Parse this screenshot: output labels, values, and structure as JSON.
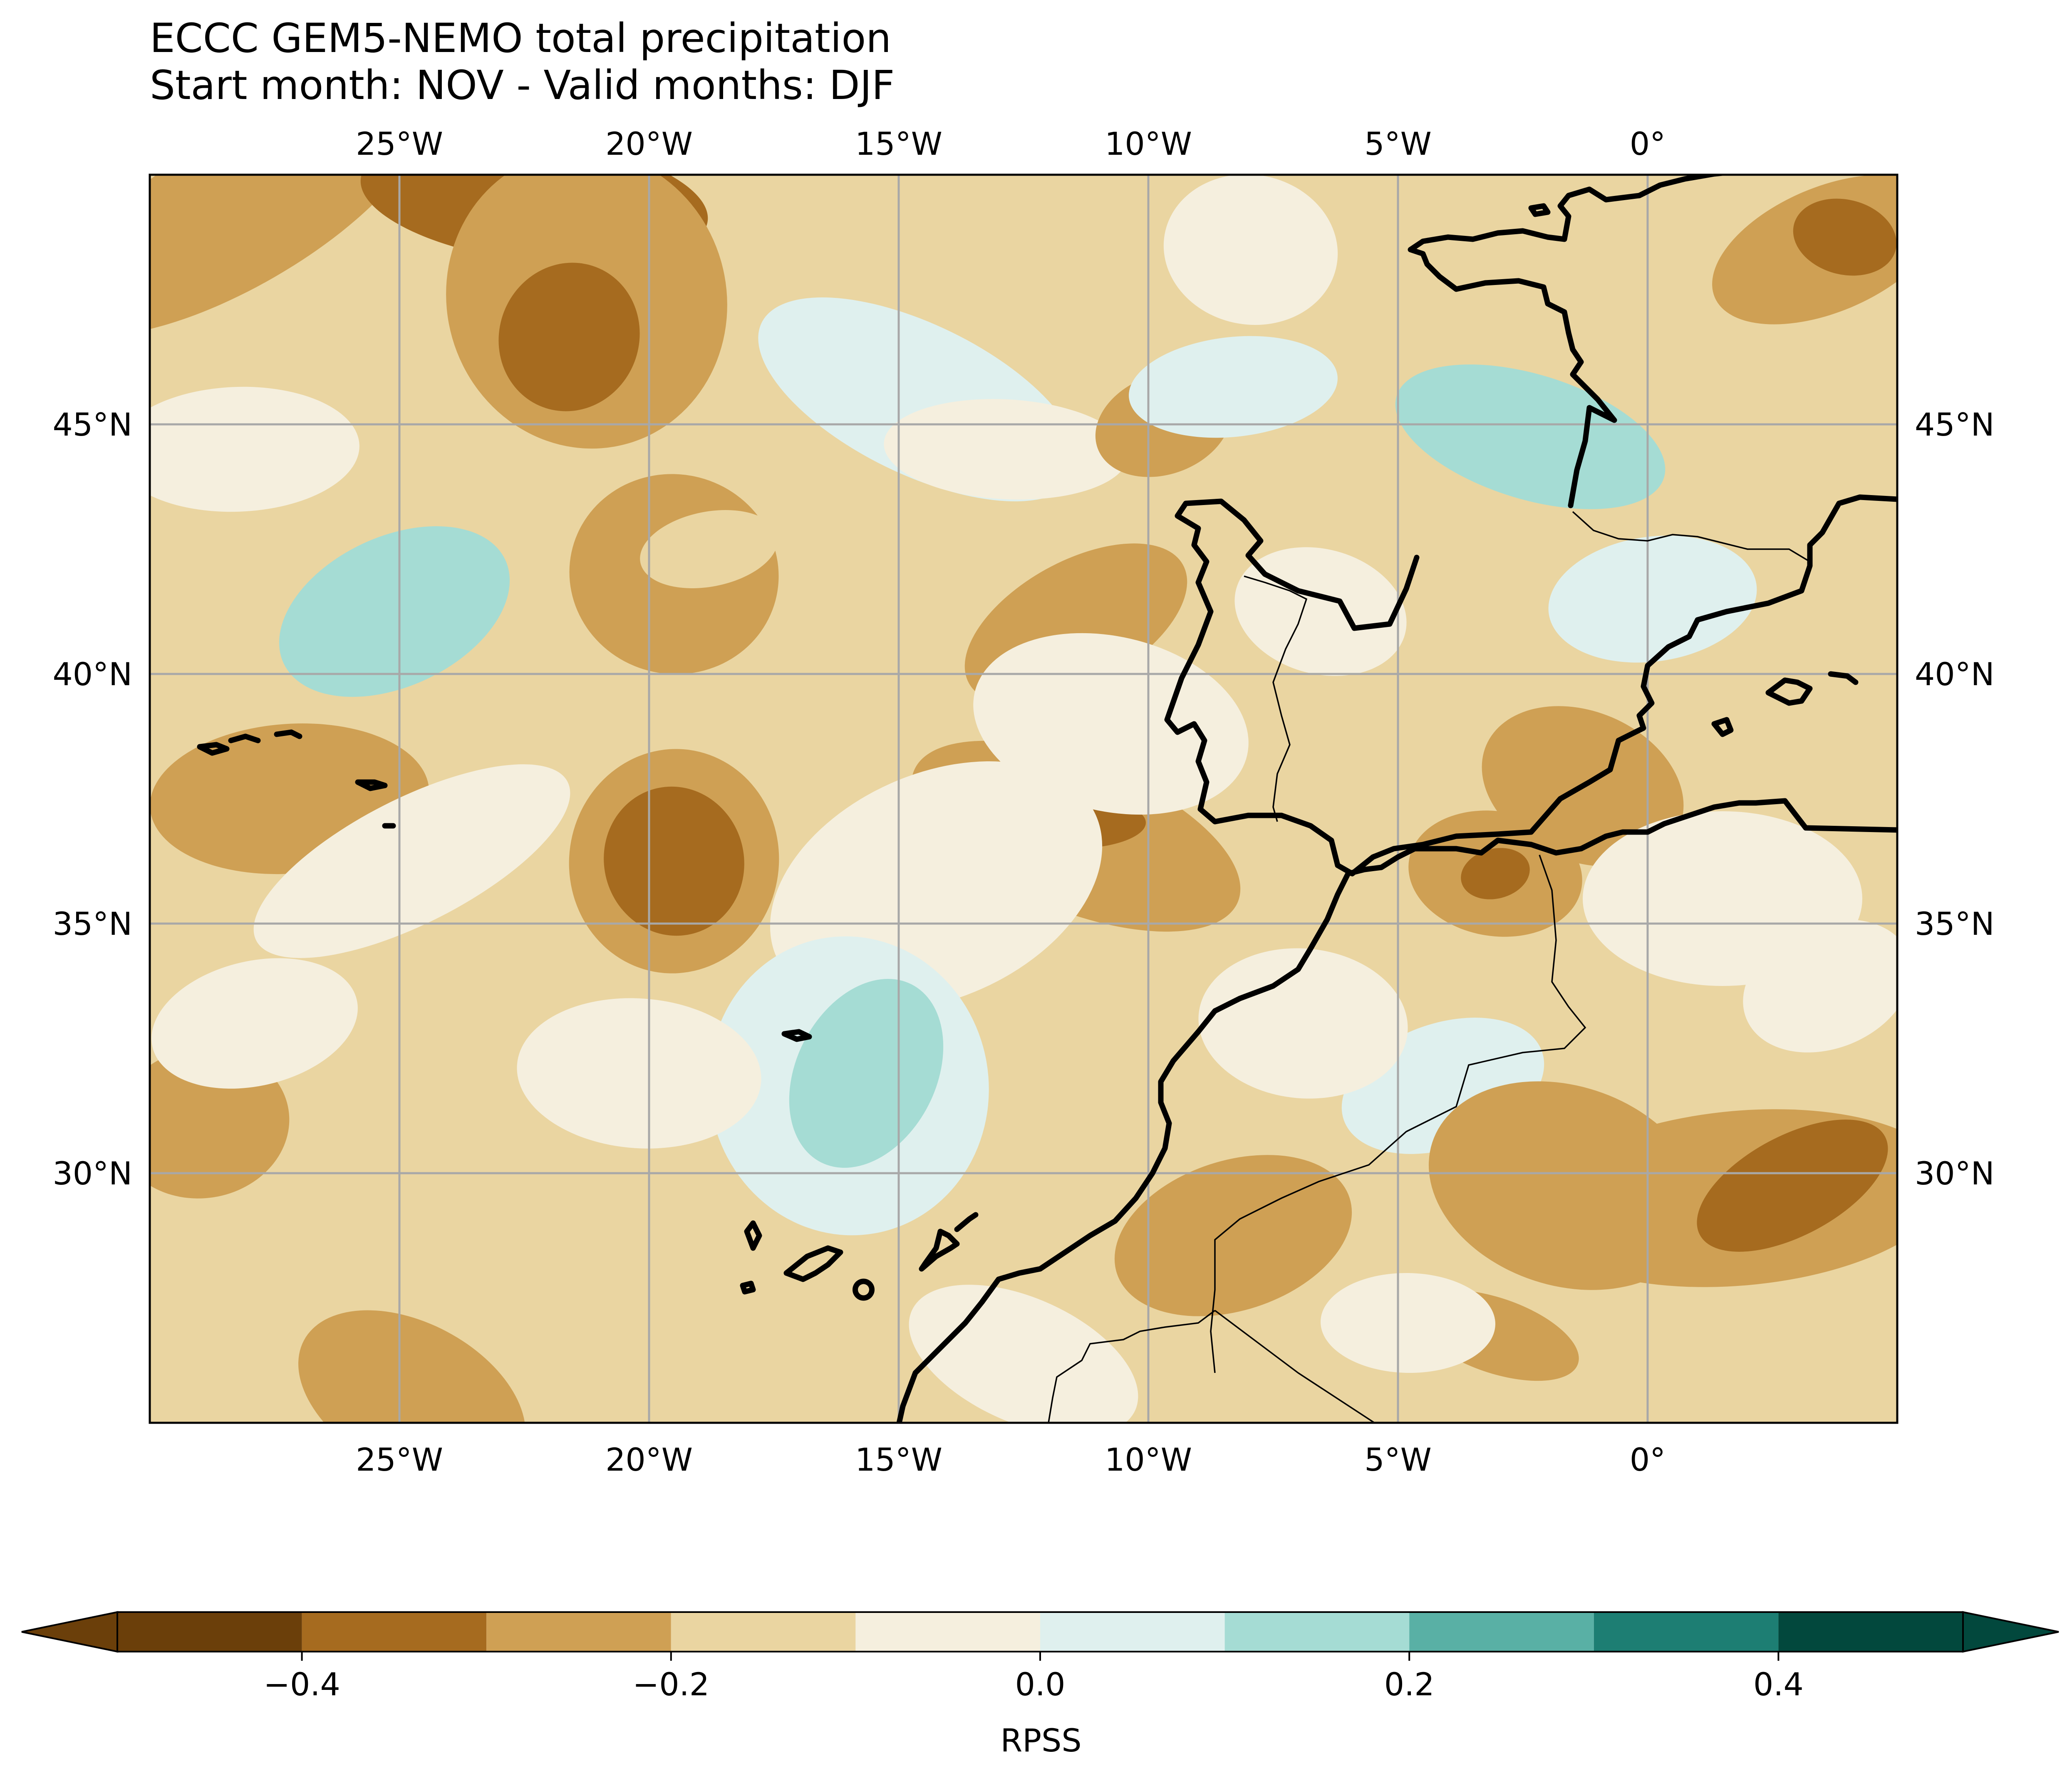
{
  "title": {
    "line1": "ECCC GEM5-NEMO total precipitation",
    "line2": "Start month: NOV - Valid months: DJF"
  },
  "map": {
    "lon_range": [
      -30,
      5
    ],
    "lat_range": [
      25,
      50
    ],
    "grid": true,
    "lon_ticks": [
      {
        "value": -25,
        "label": "25°W"
      },
      {
        "value": -20,
        "label": "20°W"
      },
      {
        "value": -15,
        "label": "15°W"
      },
      {
        "value": -10,
        "label": "10°W"
      },
      {
        "value": -5,
        "label": "5°W"
      },
      {
        "value": 0,
        "label": "0°"
      }
    ],
    "lat_ticks": [
      {
        "value": 45,
        "label": "45°N"
      },
      {
        "value": 40,
        "label": "40°N"
      },
      {
        "value": 35,
        "label": "35°N"
      },
      {
        "value": 30,
        "label": "30°N"
      }
    ]
  },
  "colorbar": {
    "label": "RPSS",
    "extend": "both",
    "levels": [
      -0.5,
      -0.4,
      -0.3,
      -0.2,
      -0.1,
      0.0,
      0.1,
      0.2,
      0.3,
      0.4,
      0.5
    ],
    "colors": [
      "#6b3f0a",
      "#a66b1f",
      "#cfa054",
      "#ead5a1",
      "#f5efde",
      "#dff0ee",
      "#a5dcd4",
      "#59b0a5",
      "#1d7e73",
      "#02483d"
    ],
    "ticks": [
      {
        "value": -0.4,
        "label": "−0.4"
      },
      {
        "value": -0.2,
        "label": "−0.2"
      },
      {
        "value": 0.0,
        "label": "0.0"
      },
      {
        "value": 0.2,
        "label": "0.2"
      },
      {
        "value": 0.4,
        "label": "0.4"
      }
    ]
  }
}
